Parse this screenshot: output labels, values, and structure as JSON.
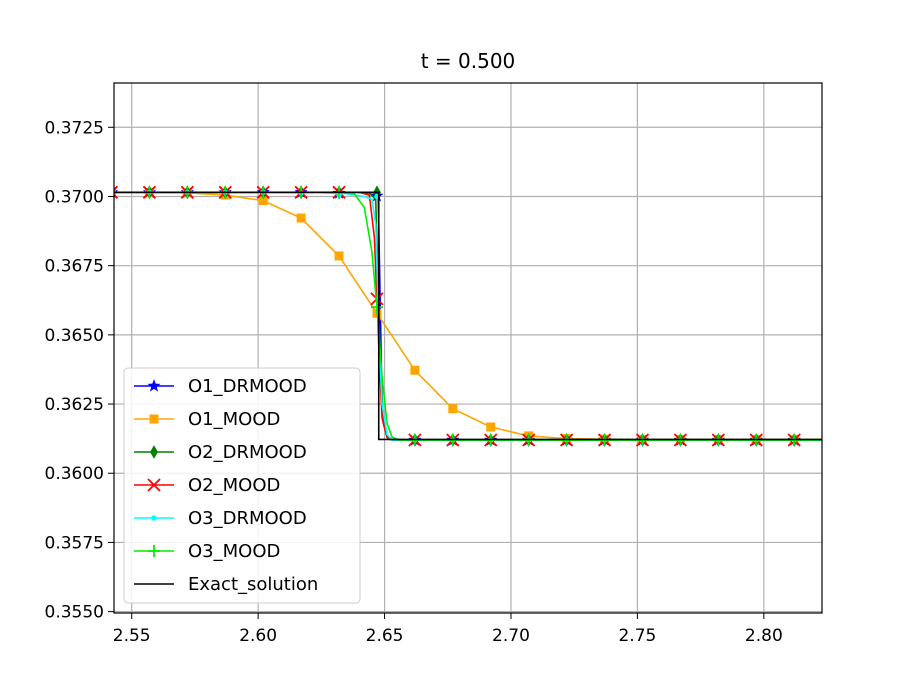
{
  "chart_data": {
    "type": "line",
    "title": "t = 0.500",
    "xlabel": "",
    "ylabel": "",
    "xlim": [
      2.543,
      2.823
    ],
    "ylim": [
      0.35495,
      0.3741
    ],
    "xticks": [
      2.55,
      2.6,
      2.65,
      2.7,
      2.75,
      2.8
    ],
    "xtick_labels": [
      "2.55",
      "2.60",
      "2.65",
      "2.70",
      "2.75",
      "2.80"
    ],
    "yticks": [
      0.355,
      0.3575,
      0.36,
      0.3625,
      0.365,
      0.3675,
      0.37,
      0.3725
    ],
    "ytick_labels": [
      "0.3550",
      "0.3575",
      "0.3600",
      "0.3625",
      "0.3650",
      "0.3675",
      "0.3700",
      "0.3725"
    ],
    "grid": true,
    "legend_position": "lower-left",
    "marker_x": [
      2.542,
      2.557,
      2.572,
      2.587,
      2.602,
      2.617,
      2.632,
      2.647,
      2.662,
      2.677,
      2.692,
      2.707,
      2.722,
      2.737,
      2.752,
      2.767,
      2.782,
      2.797,
      2.812
    ],
    "series": [
      {
        "name": "O1_DRMOOD",
        "color": "#0000ff",
        "marker": "star",
        "curve_x": [
          2.542,
          2.632,
          2.64,
          2.644,
          2.646,
          2.6475,
          2.649,
          2.651,
          2.653,
          2.823
        ],
        "curve_y": [
          0.37015,
          0.37015,
          0.37015,
          0.37015,
          0.37015,
          0.37,
          0.3625,
          0.3613,
          0.3612,
          0.3612
        ],
        "marker_y": [
          0.37015,
          0.37015,
          0.37015,
          0.37015,
          0.37015,
          0.37015,
          0.37012,
          0.37002,
          0.3612,
          0.3612,
          0.3612,
          0.3612,
          0.3612,
          0.3612,
          0.3612,
          0.3612,
          0.3612,
          0.3612,
          0.3612
        ]
      },
      {
        "name": "O1_MOOD",
        "color": "#ffa500",
        "marker": "square",
        "curve_x": [
          2.542,
          2.557,
          2.572,
          2.587,
          2.602,
          2.617,
          2.632,
          2.647,
          2.662,
          2.677,
          2.692,
          2.707,
          2.722,
          2.737,
          2.752,
          2.767,
          2.782,
          2.797,
          2.812,
          2.823
        ],
        "curve_y": [
          0.37015,
          0.37015,
          0.37013,
          0.37005,
          0.36985,
          0.36922,
          0.36785,
          0.36578,
          0.36372,
          0.36233,
          0.36167,
          0.36135,
          0.36125,
          0.36123,
          0.36122,
          0.36122,
          0.36122,
          0.36122,
          0.36122,
          0.36122
        ],
        "marker_y": [
          0.37015,
          0.37015,
          0.37013,
          0.37005,
          0.36985,
          0.36922,
          0.36785,
          0.36578,
          0.36372,
          0.36233,
          0.36167,
          0.36135,
          0.36125,
          0.36123,
          0.36122,
          0.36122,
          0.36122,
          0.36122,
          0.36122
        ]
      },
      {
        "name": "O2_DRMOOD",
        "color": "#008000",
        "marker": "diamond",
        "curve_x": [
          2.542,
          2.64,
          2.644,
          2.6465,
          2.648,
          2.6495,
          2.651,
          2.653,
          2.823
        ],
        "curve_y": [
          0.37015,
          0.37015,
          0.37012,
          0.3699,
          0.365,
          0.3618,
          0.3613,
          0.3612,
          0.3612
        ],
        "marker_y": [
          0.37015,
          0.37015,
          0.37015,
          0.37015,
          0.37015,
          0.37015,
          0.37015,
          0.37015,
          0.3612,
          0.3612,
          0.3612,
          0.3612,
          0.3612,
          0.3612,
          0.3612,
          0.3612,
          0.3612,
          0.3612,
          0.3612
        ]
      },
      {
        "name": "O2_MOOD",
        "color": "#ff0000",
        "marker": "x",
        "curve_x": [
          2.542,
          2.64,
          2.644,
          2.646,
          2.647,
          2.648,
          2.649,
          2.651,
          2.653,
          2.823
        ],
        "curve_y": [
          0.37015,
          0.37015,
          0.37005,
          0.3685,
          0.3663,
          0.364,
          0.362,
          0.3613,
          0.3612,
          0.3612
        ],
        "marker_y": [
          0.37015,
          0.37015,
          0.37015,
          0.37015,
          0.37015,
          0.37015,
          0.37015,
          0.3663,
          0.3612,
          0.3612,
          0.3612,
          0.3612,
          0.3612,
          0.3612,
          0.3612,
          0.3612,
          0.3612,
          0.3612,
          0.3612
        ]
      },
      {
        "name": "O3_DRMOOD",
        "color": "#00ffff",
        "marker": "dot",
        "curve_x": [
          2.542,
          2.62,
          2.635,
          2.642,
          2.645,
          2.6465,
          2.648,
          2.649,
          2.651,
          2.653,
          2.823
        ],
        "curve_y": [
          0.37015,
          0.37015,
          0.3701,
          0.37,
          0.3699,
          0.369,
          0.3645,
          0.3625,
          0.3614,
          0.3612,
          0.3612
        ],
        "marker_y": [
          0.37015,
          0.37015,
          0.37015,
          0.37015,
          0.37015,
          0.37012,
          0.37005,
          0.37,
          0.3612,
          0.3612,
          0.3612,
          0.3612,
          0.3612,
          0.3612,
          0.3612,
          0.3612,
          0.3612,
          0.3612,
          0.3612
        ]
      },
      {
        "name": "O3_MOOD",
        "color": "#00ee00",
        "marker": "plus",
        "curve_x": [
          2.542,
          2.632,
          2.638,
          2.642,
          2.645,
          2.647,
          2.649,
          2.651,
          2.653,
          2.656,
          2.823
        ],
        "curve_y": [
          0.37015,
          0.37015,
          0.3701,
          0.3696,
          0.368,
          0.366,
          0.3635,
          0.3618,
          0.3613,
          0.3612,
          0.3612
        ],
        "marker_y": [
          0.37015,
          0.37015,
          0.37015,
          0.37015,
          0.37015,
          0.37015,
          0.37015,
          0.366,
          0.3612,
          0.3612,
          0.3612,
          0.3612,
          0.3612,
          0.3612,
          0.3612,
          0.3612,
          0.3612,
          0.3612,
          0.3612
        ]
      },
      {
        "name": "Exact_solution",
        "color": "#000000",
        "marker": "none",
        "curve_x": [
          2.542,
          2.6477,
          2.6477,
          2.823
        ],
        "curve_y": [
          0.37015,
          0.37015,
          0.36122,
          0.36122
        ],
        "marker_y": []
      }
    ]
  }
}
